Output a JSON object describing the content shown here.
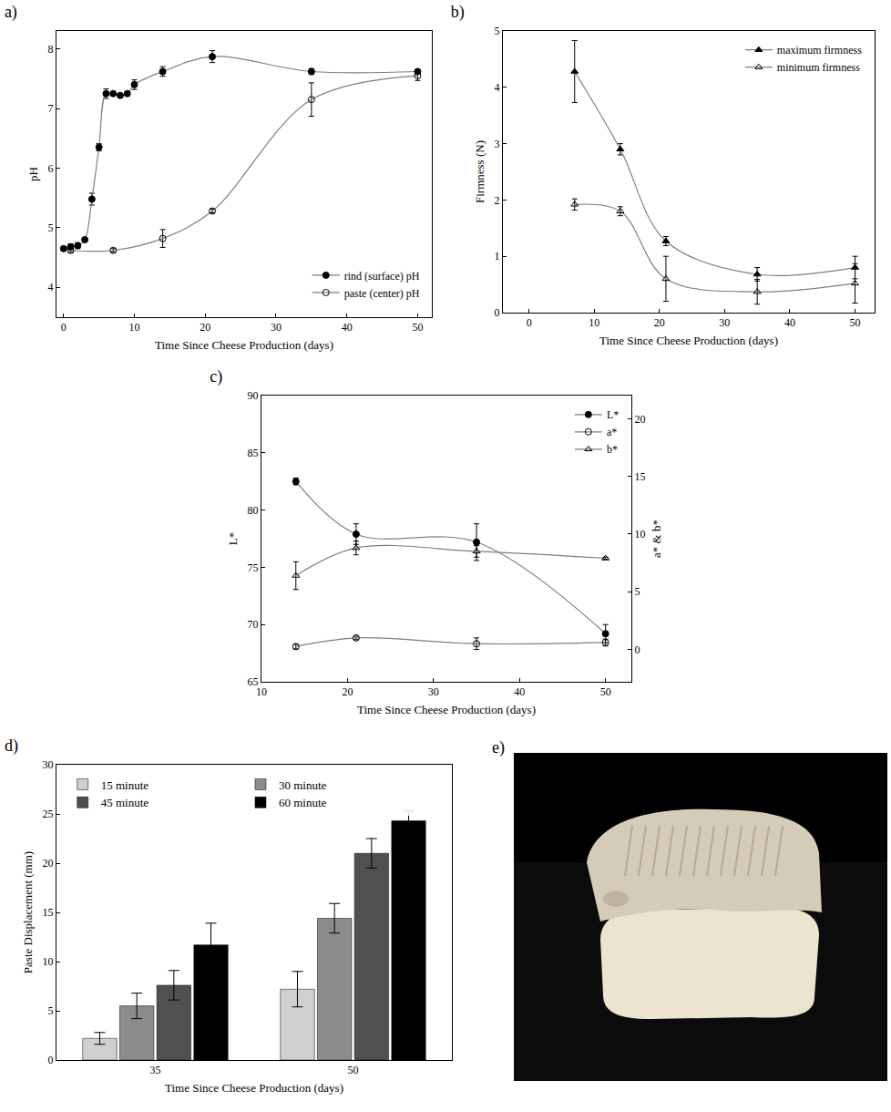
{
  "chart_data": [
    {
      "type": "scatter",
      "title": "a)",
      "x_label": "Time Since Cheese Production (days)",
      "y_label": "pH",
      "xlim": [
        -1,
        52
      ],
      "xticks": [
        0,
        10,
        20,
        30,
        40,
        50
      ],
      "ylim": [
        3.5,
        8.3
      ],
      "yticks": [
        4,
        5,
        6,
        7,
        8
      ],
      "legend": "bottom right",
      "grid": false,
      "series": [
        {
          "name": "rind (surface) pH",
          "color": "#000000",
          "marker": "circle",
          "line_style": "solid",
          "x": [
            0,
            1,
            2,
            3,
            4,
            5,
            6,
            7,
            8,
            9,
            10,
            14,
            21,
            35,
            50
          ],
          "values": [
            4.65,
            4.68,
            4.7,
            4.8,
            5.48,
            6.35,
            7.25,
            7.25,
            7.22,
            7.25,
            7.4,
            7.62,
            7.87,
            7.62,
            7.62
          ],
          "errors": [
            0.03,
            0.05,
            0.05,
            0.03,
            0.1,
            0.06,
            0.08,
            0.03,
            0.03,
            0.03,
            0.08,
            0.08,
            0.1,
            0.05,
            0.03
          ]
        },
        {
          "name": "paste (center) pH",
          "color": "#000000",
          "marker": "circle-open",
          "line_style": "solid",
          "x": [
            1,
            7,
            14,
            21,
            35,
            50
          ],
          "values": [
            4.62,
            4.62,
            4.82,
            5.28,
            7.15,
            7.55
          ],
          "errors": [
            0.03,
            0.03,
            0.15,
            0.03,
            0.28,
            0.08
          ]
        }
      ]
    },
    {
      "type": "scatter",
      "title": "b)",
      "x_label": "Time Since Cheese Production (days)",
      "y_label": "Firmness (N)",
      "xlim": [
        -4,
        53
      ],
      "xticks": [
        0,
        10,
        20,
        30,
        40,
        50
      ],
      "ylim": [
        0,
        5
      ],
      "yticks": [
        0,
        1,
        2,
        3,
        4,
        5
      ],
      "legend": "top right",
      "grid": false,
      "series": [
        {
          "name": "maximum firmness",
          "color": "#000000",
          "marker": "triangle-up",
          "line_style": "solid",
          "x": [
            7,
            14,
            21,
            35,
            50
          ],
          "values": [
            4.28,
            2.9,
            1.27,
            0.68,
            0.8
          ],
          "errors": [
            0.55,
            0.1,
            0.08,
            0.12,
            0.2
          ]
        },
        {
          "name": "minimum firmness",
          "color": "#000000",
          "marker": "triangle-up-open",
          "line_style": "solid",
          "x": [
            7,
            14,
            21,
            35,
            50
          ],
          "values": [
            1.92,
            1.8,
            0.6,
            0.37,
            0.52
          ],
          "errors": [
            0.1,
            0.08,
            0.4,
            0.22,
            0.35
          ]
        }
      ]
    },
    {
      "type": "scatter",
      "title": "c)",
      "x_label": "Time Since Cheese Production (days)",
      "y_label": "L*",
      "y2_label": "a* & b*",
      "xlim": [
        10,
        53
      ],
      "xticks": [
        10,
        20,
        30,
        40,
        50
      ],
      "ylim": [
        65,
        90
      ],
      "yticks": [
        65,
        70,
        75,
        80,
        85,
        90
      ],
      "y2lim": [
        -2.8,
        22
      ],
      "y2ticks": [
        0,
        5,
        10,
        15,
        20
      ],
      "legend": "top right",
      "grid": false,
      "series": [
        {
          "name": "L*",
          "color": "#000000",
          "marker": "circle",
          "line_style": "solid",
          "x": [
            14,
            21,
            35,
            50
          ],
          "values": [
            82.5,
            77.9,
            77.2,
            69.2
          ],
          "errors": [
            0.3,
            0.9,
            1.6,
            0.8
          ]
        },
        {
          "name": "a*",
          "color": "#000000",
          "marker": "circle-open",
          "line_style": "solid",
          "axis": "y2",
          "x": [
            14,
            21,
            35,
            50
          ],
          "values": [
            0.25,
            1.0,
            0.5,
            0.6
          ],
          "errors": [
            0.2,
            0.15,
            0.5,
            0.3
          ]
        },
        {
          "name": "b*",
          "color": "#000000",
          "marker": "triangle-up-open",
          "line_style": "solid",
          "axis": "y2",
          "x": [
            14,
            21,
            35,
            50
          ],
          "values": [
            6.4,
            8.8,
            8.5,
            7.9
          ],
          "errors": [
            1.2,
            0.6,
            0.5,
            0.1
          ]
        }
      ]
    },
    {
      "type": "bar",
      "title": "d)",
      "x_label": "Time Since Cheese Production (days)",
      "y_label": "Paste Displacement (mm)",
      "categories": [
        "35",
        "50"
      ],
      "ylim": [
        0,
        30
      ],
      "yticks": [
        0,
        5,
        10,
        15,
        20,
        25,
        30
      ],
      "legend": "top left",
      "grid": false,
      "series": [
        {
          "name": "15 minute",
          "color": "#d0d0d0",
          "values": [
            2.2,
            7.2
          ],
          "errors": [
            0.6,
            1.8
          ]
        },
        {
          "name": "30 minute",
          "color": "#8c8c8c",
          "values": [
            5.5,
            14.4
          ],
          "errors": [
            1.3,
            1.5
          ]
        },
        {
          "name": "45 minute",
          "color": "#505050",
          "values": [
            7.6,
            21.0
          ],
          "errors": [
            1.5,
            1.5
          ]
        },
        {
          "name": "60 minute",
          "color": "#000000",
          "values": [
            11.7,
            24.3
          ],
          "errors": [
            2.2,
            1.0
          ]
        }
      ]
    },
    {
      "type": "image",
      "title": "e)"
    }
  ]
}
